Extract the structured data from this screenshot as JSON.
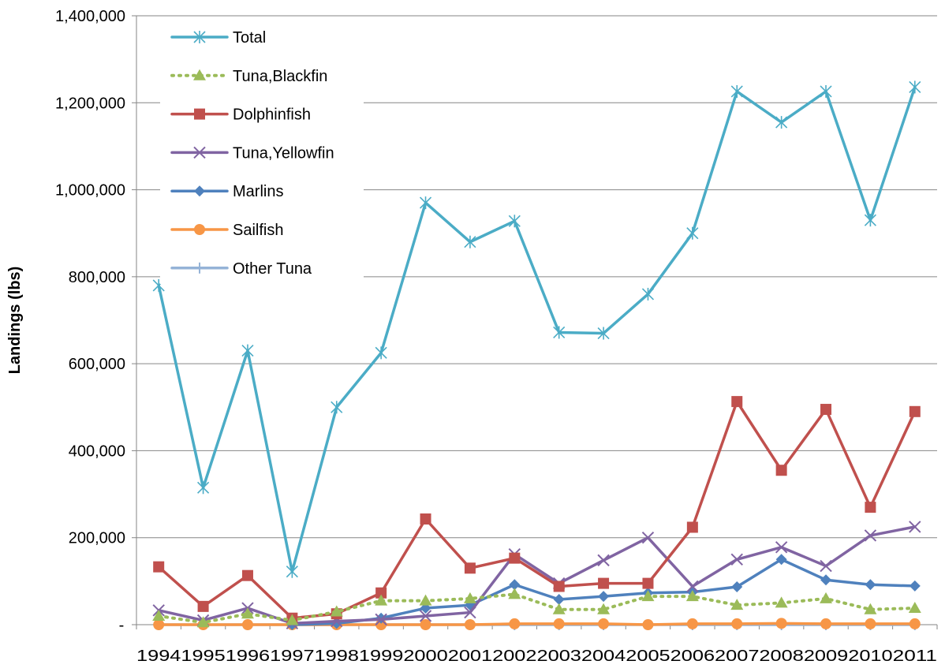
{
  "chart_data": {
    "type": "line",
    "title": "",
    "xlabel": "",
    "ylabel": "Landings (lbs)",
    "ylim": [
      0,
      1400000
    ],
    "yticks": [
      0,
      200000,
      400000,
      600000,
      800000,
      1000000,
      1200000,
      1400000
    ],
    "ytick_labels": [
      "-",
      "200,000",
      "400,000",
      "600,000",
      "800,000",
      "1,000,000",
      "1,200,000",
      "1,400,000"
    ],
    "grid": "horizontal",
    "legend_position": "top-left",
    "categories": [
      "1994",
      "1995",
      "1996",
      "1997",
      "1998",
      "1999",
      "2000",
      "2001",
      "2002",
      "2003",
      "2004",
      "2005",
      "2006",
      "2007",
      "2008",
      "2009",
      "2010",
      "2011"
    ],
    "series": [
      {
        "name": "Total",
        "color": "#4BACC6",
        "marker": "asterisk",
        "dashed": false,
        "values": [
          780000,
          315000,
          630000,
          122000,
          500000,
          625000,
          970000,
          880000,
          928000,
          672000,
          670000,
          760000,
          900000,
          1226000,
          1155000,
          1226000,
          930000,
          1236000
        ]
      },
      {
        "name": "Tuna,Blackfin",
        "color": "#9BBB59",
        "marker": "triangle",
        "dashed": true,
        "values": [
          20000,
          5000,
          25000,
          10000,
          30000,
          55000,
          55000,
          60000,
          70000,
          35000,
          35000,
          65000,
          65000,
          45000,
          50000,
          60000,
          35000,
          38000
        ]
      },
      {
        "name": "Dolphinfish",
        "color": "#C0504D",
        "marker": "square",
        "dashed": false,
        "values": [
          133000,
          42000,
          113000,
          15000,
          25000,
          73000,
          243000,
          130000,
          153000,
          88000,
          95000,
          95000,
          224000,
          513000,
          355000,
          495000,
          270000,
          490000
        ]
      },
      {
        "name": "Tuna,Yellowfin",
        "color": "#8064A2",
        "marker": "x",
        "dashed": false,
        "values": [
          33000,
          10000,
          38000,
          3000,
          8000,
          12000,
          20000,
          28000,
          162000,
          95000,
          148000,
          200000,
          88000,
          150000,
          178000,
          135000,
          205000,
          225000
        ]
      },
      {
        "name": "Marlins",
        "color": "#4F81BD",
        "marker": "diamond",
        "dashed": false,
        "values": [
          null,
          null,
          null,
          0,
          3000,
          15000,
          38000,
          45000,
          92000,
          58000,
          65000,
          73000,
          75000,
          87000,
          150000,
          103000,
          92000,
          89000
        ]
      },
      {
        "name": "Sailfish",
        "color": "#F79646",
        "marker": "circle",
        "dashed": false,
        "values": [
          0,
          0,
          0,
          0,
          0,
          0,
          0,
          0,
          2000,
          2000,
          2000,
          0,
          2000,
          2000,
          3000,
          2000,
          2000,
          2000
        ]
      },
      {
        "name": "Other Tuna",
        "color": "#95B3D7",
        "marker": "plus",
        "dashed": false,
        "values": [
          0,
          0,
          0,
          0,
          0,
          0,
          0,
          0,
          0,
          0,
          0,
          0,
          0,
          0,
          0,
          0,
          0,
          0
        ]
      }
    ]
  }
}
